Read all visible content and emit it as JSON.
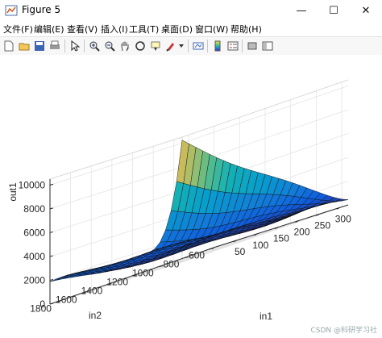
{
  "window": {
    "title": "Figure 5",
    "controls": {
      "minimize": "—",
      "maximize": "☐",
      "close": "✕"
    }
  },
  "menu": [
    "文件(F)",
    "编辑(E)",
    "查看(V)",
    "插入(I)",
    "工具(T)",
    "桌面(D)",
    "窗口(W)",
    "帮助(H)"
  ],
  "toolbar": {
    "buttons": [
      "new-figure-icon",
      "open-file-icon",
      "save-icon",
      "print-icon",
      "select-arrow-icon",
      "zoom-in-icon",
      "zoom-out-icon",
      "pan-hand-icon",
      "rotate-3d-icon",
      "data-cursor-icon",
      "brush-icon",
      "link-plot-icon",
      "colorbar-icon",
      "legend-icon",
      "hide-plot-tools-icon",
      "show-plot-tools-icon"
    ]
  },
  "chart_data": {
    "type": "surface",
    "zlabel": "out1",
    "xlabel": "in1",
    "ylabel": "in2",
    "z_ticks": [
      "0",
      "2000",
      "4000",
      "6000",
      "8000",
      "10000"
    ],
    "y_ticks": [
      "600",
      "800",
      "1000",
      "1200",
      "1400",
      "1600",
      "1800"
    ],
    "x_ticks": [
      "50",
      "100",
      "150",
      "200",
      "250",
      "300"
    ],
    "xlim": [
      0,
      320
    ],
    "ylim": [
      550,
      1850
    ],
    "zlim": [
      0,
      10500
    ],
    "grid": true,
    "colormap": "parula",
    "peak": {
      "in1": 320,
      "in2": 1800,
      "out1": 9500
    }
  },
  "watermark": "CSDN @科研学习社"
}
